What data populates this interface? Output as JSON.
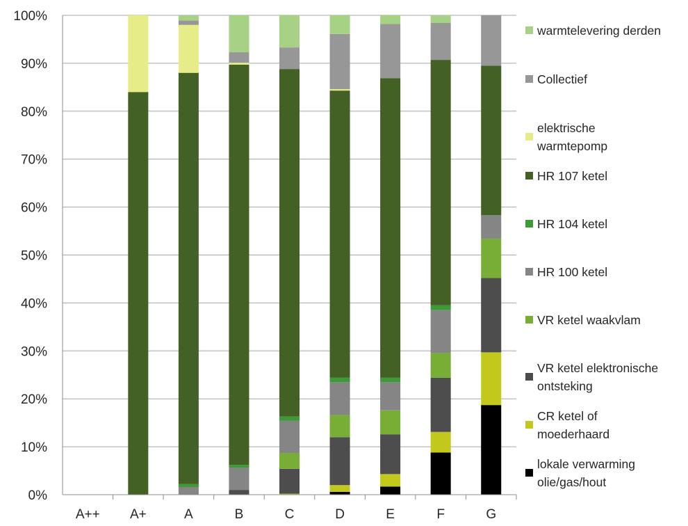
{
  "chart_data": {
    "type": "bar",
    "stacked": true,
    "percent": true,
    "categories": [
      "A++",
      "A+",
      "A",
      "B",
      "C",
      "D",
      "E",
      "F",
      "G"
    ],
    "ylim": [
      0,
      100
    ],
    "yticks": [
      "0%",
      "10%",
      "20%",
      "30%",
      "40%",
      "50%",
      "60%",
      "70%",
      "80%",
      "90%",
      "100%"
    ],
    "grid": true,
    "legend_position": "right",
    "series": [
      {
        "name": "lokale verwarming olie/gas/hout",
        "color": "#000000",
        "values": [
          0,
          0,
          0,
          0,
          0,
          0.6,
          1.7,
          8.8,
          18.7
        ]
      },
      {
        "name": "CR ketel of moederhaard",
        "color": "#c3c91c",
        "values": [
          0,
          0,
          0,
          0,
          0.2,
          1.4,
          2.6,
          4.3,
          11.0
        ]
      },
      {
        "name": "VR ketel elektronische ontsteking",
        "color": "#4d4d4d",
        "values": [
          0,
          0,
          0,
          1.0,
          5.2,
          10.0,
          8.3,
          11.3,
          15.5
        ]
      },
      {
        "name": "VR ketel waakvlam",
        "color": "#78ad36",
        "values": [
          0,
          0,
          0,
          0,
          3.3,
          4.6,
          5.0,
          5.2,
          8.2
        ]
      },
      {
        "name": "HR 100 ketel",
        "color": "#858585",
        "values": [
          0,
          0,
          1.6,
          4.6,
          6.7,
          6.9,
          5.9,
          8.9,
          4.9
        ]
      },
      {
        "name": "HR 104 ketel",
        "color": "#3c9a37",
        "values": [
          0,
          0,
          0.6,
          0.6,
          0.9,
          0.9,
          0.9,
          1.0,
          0
        ]
      },
      {
        "name": "HR 107 ketel",
        "color": "#446125",
        "values": [
          0,
          84.0,
          85.8,
          83.5,
          72.5,
          59.9,
          62.5,
          51.2,
          31.2
        ]
      },
      {
        "name": "elektrische warmtepomp",
        "color": "#e5ec88",
        "values": [
          0,
          16.0,
          10.0,
          0.4,
          0,
          0.3,
          0,
          0,
          0
        ]
      },
      {
        "name": "Collectief",
        "color": "#979797",
        "values": [
          0,
          0,
          0.9,
          2.2,
          4.5,
          11.5,
          11.3,
          7.7,
          10.5
        ]
      },
      {
        "name": "warmtelevering derden",
        "color": "#a7d184",
        "values": [
          0,
          0,
          1.1,
          7.7,
          6.7,
          3.9,
          1.8,
          1.5,
          0
        ]
      }
    ],
    "legend": [
      {
        "lines": [
          "warmtelevering derden"
        ],
        "color": "#a7d184"
      },
      {
        "lines": [
          "Collectief"
        ],
        "color": "#979797"
      },
      {
        "lines": [
          "elektrische",
          "warmtepomp"
        ],
        "color": "#e5ec88"
      },
      {
        "lines": [
          "HR 107 ketel"
        ],
        "color": "#446125"
      },
      {
        "lines": [
          "HR 104 ketel"
        ],
        "color": "#3c9a37"
      },
      {
        "lines": [
          "HR 100 ketel"
        ],
        "color": "#858585"
      },
      {
        "lines": [
          "VR ketel waakvlam"
        ],
        "color": "#78ad36"
      },
      {
        "lines": [
          "VR ketel elektronische",
          "ontsteking"
        ],
        "color": "#4d4d4d"
      },
      {
        "lines": [
          "CR ketel of",
          "moederhaard"
        ],
        "color": "#c3c91c"
      },
      {
        "lines": [
          "lokale verwarming",
          "olie/gas/hout"
        ],
        "color": "#000000"
      }
    ]
  }
}
